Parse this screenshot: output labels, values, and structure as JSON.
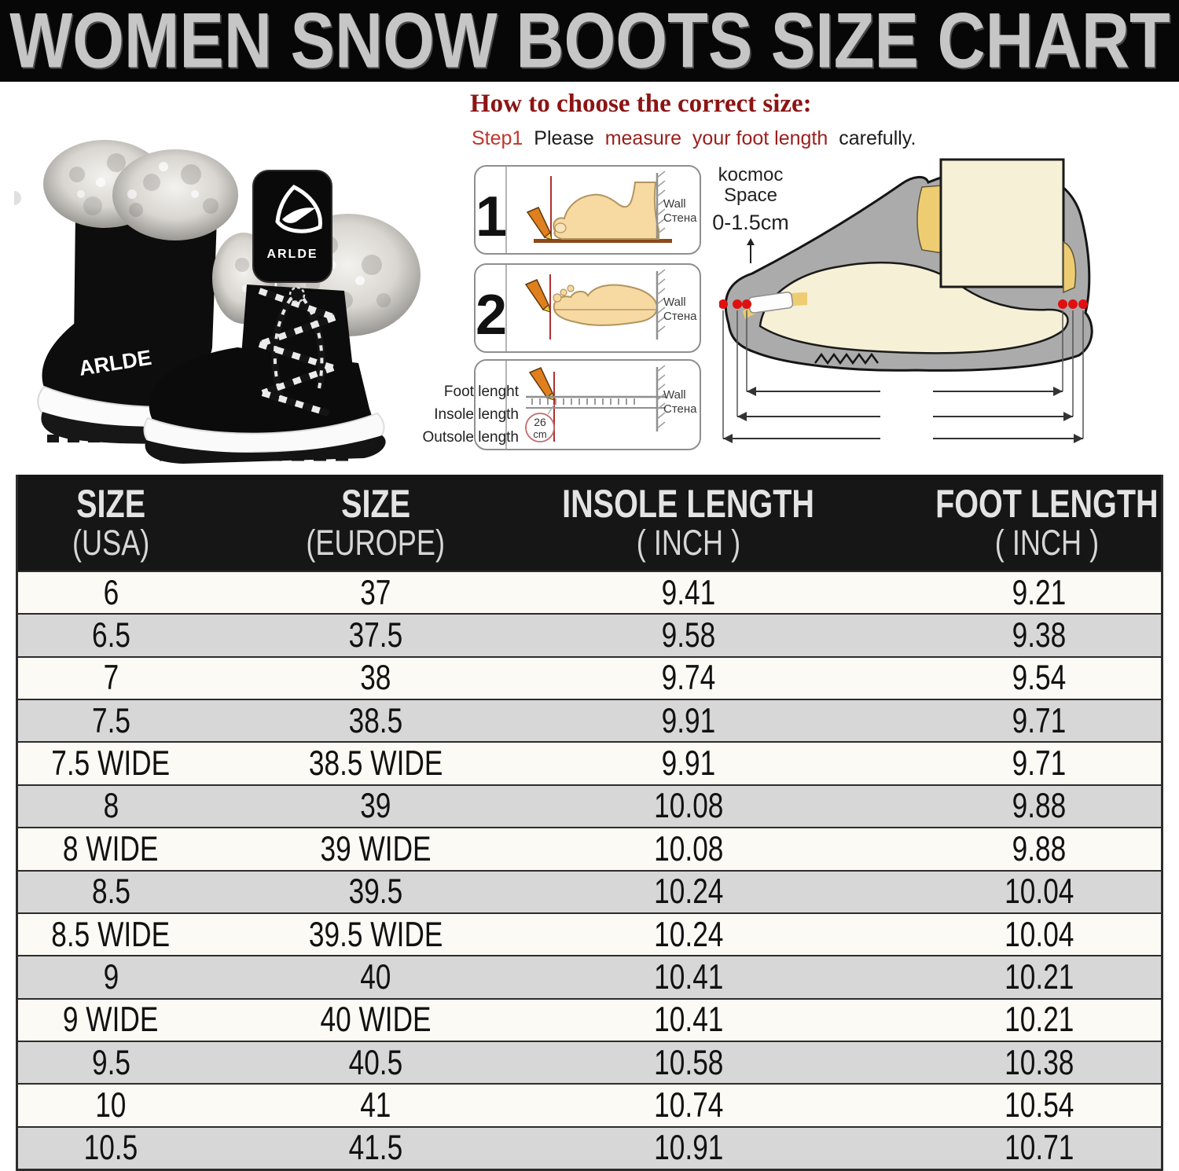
{
  "banner": {
    "title": "WOMEN SNOW BOOTS SIZE CHART"
  },
  "product": {
    "brand": "ARLDE"
  },
  "colors": {
    "banner_bg": "#070707",
    "banner_fg": "#c6c6c6",
    "heading_red": "#8c1414",
    "step_red": "#c0352c",
    "step_maroon": "#99201d",
    "header_bg": "#161616",
    "row_light": "#fbfaf5",
    "row_alt": "#d7d7d7",
    "red_dot": "#e01010",
    "pencil_orange": "#e07f1e",
    "boot_gray": "#ababab",
    "foot_cream": "#f6f0d6"
  },
  "guide": {
    "heading": "How to choose the correct size:",
    "subline": {
      "step": "Step1",
      "a": "Please",
      "b": "measure",
      "c": "your foot length",
      "d": "carefully."
    },
    "boxes": [
      {
        "num": "1",
        "wall": {
          "en": "Wall",
          "ru": "Стена"
        }
      },
      {
        "num": "2",
        "wall": {
          "en": "Wall",
          "ru": "Стена"
        }
      },
      {
        "labels": [
          "Foot lenght",
          "Insole length",
          "Outsole length"
        ],
        "circle": {
          "value": "26",
          "unit": "cm"
        },
        "wall": {
          "en": "Wall",
          "ru": "Стена"
        }
      }
    ],
    "space_note": {
      "line1": "kocmoc",
      "line2": "Space",
      "range": "0-1.5cm"
    }
  },
  "table": {
    "headers": [
      {
        "top": "SIZE",
        "bottom": "(USA)"
      },
      {
        "top": "SIZE",
        "bottom": "(EUROPE)"
      },
      {
        "top": "INSOLE LENGTH",
        "bottom": "( INCH )"
      },
      {
        "top": "FOOT LENGTH",
        "bottom": "( INCH )"
      }
    ]
  },
  "chart_data": {
    "type": "table",
    "title": "WOMEN SNOW BOOTS SIZE CHART",
    "columns": [
      "SIZE (USA)",
      "SIZE (EUROPE)",
      "INSOLE LENGTH ( INCH )",
      "FOOT LENGTH ( INCH )"
    ],
    "rows": [
      [
        "6",
        "37",
        "9.41",
        "9.21"
      ],
      [
        "6.5",
        "37.5",
        "9.58",
        "9.38"
      ],
      [
        "7",
        "38",
        "9.74",
        "9.54"
      ],
      [
        "7.5",
        "38.5",
        "9.91",
        "9.71"
      ],
      [
        "7.5 WIDE",
        "38.5 WIDE",
        "9.91",
        "9.71"
      ],
      [
        "8",
        "39",
        "10.08",
        "9.88"
      ],
      [
        "8 WIDE",
        "39 WIDE",
        "10.08",
        "9.88"
      ],
      [
        "8.5",
        "39.5",
        "10.24",
        "10.04"
      ],
      [
        "8.5 WIDE",
        "39.5 WIDE",
        "10.24",
        "10.04"
      ],
      [
        "9",
        "40",
        "10.41",
        "10.21"
      ],
      [
        "9 WIDE",
        "40 WIDE",
        "10.41",
        "10.21"
      ],
      [
        "9.5",
        "40.5",
        "10.58",
        "10.38"
      ],
      [
        "10",
        "41",
        "10.74",
        "10.54"
      ],
      [
        "10.5",
        "41.5",
        "10.91",
        "10.71"
      ]
    ]
  }
}
